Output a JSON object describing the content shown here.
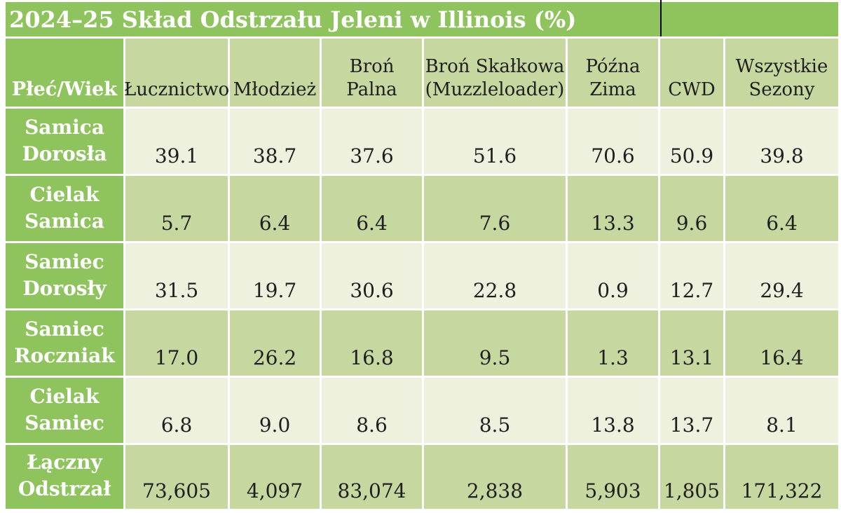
{
  "chart_data": {
    "type": "table",
    "title": "2024–25 Skład Odstrzału Jeleni w Illinois (%)",
    "corner_header": "Płeć/Wiek",
    "columns": [
      "Łucznictwo",
      "Młodzież",
      "Broń Palna",
      "Broń Skałkowa\n(Muzzleloader)",
      "Późna\nZima",
      "CWD",
      "Wszystkie\nSezony"
    ],
    "rows": [
      {
        "label": "Samica\nDorosła",
        "values": [
          "39.1",
          "38.7",
          "37.6",
          "51.6",
          "70.6",
          "50.9",
          "39.8"
        ]
      },
      {
        "label": "Cielak\nSamica",
        "values": [
          "5.7",
          "6.4",
          "6.4",
          "7.6",
          "13.3",
          "9.6",
          "6.4"
        ]
      },
      {
        "label": "Samiec\nDorosły",
        "values": [
          "31.5",
          "19.7",
          "30.6",
          "22.8",
          "0.9",
          "12.7",
          "29.4"
        ]
      },
      {
        "label": "Samiec\nRoczniak",
        "values": [
          "17.0",
          "26.2",
          "16.8",
          "9.5",
          "1.3",
          "13.1",
          "16.4"
        ]
      },
      {
        "label": "Cielak\nSamiec",
        "values": [
          "6.8",
          "9.0",
          "8.6",
          "8.5",
          "13.8",
          "13.7",
          "8.1"
        ]
      },
      {
        "label": "Łączny\nOdstrzał",
        "values": [
          "73,605",
          "4,097",
          "83,074",
          "2,838",
          "5,903",
          "1,805",
          "171,322"
        ]
      }
    ],
    "layout_hints": {
      "banding": "rows alternate light/mid starting with light",
      "text_alignment": "bottom-center in every cell",
      "title_divider": "black vertical line in title bar above CWD column"
    }
  },
  "colors": {
    "header_green": "#8FC35E",
    "band_light": "#EDF1DE",
    "band_mid": "#C6D7A0",
    "text_dark": "#1f1f1f",
    "text_light": "#ffffff",
    "divider_black": "#000000",
    "background": "#ffffff"
  }
}
